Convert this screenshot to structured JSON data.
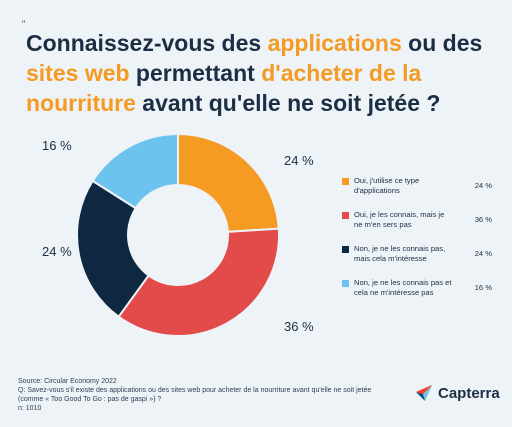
{
  "header": {
    "quote_mark": "\"",
    "title_parts": [
      {
        "text": "Connaissez-vous des ",
        "highlight": false
      },
      {
        "text": "applications",
        "highlight": true
      },
      {
        "text": " ou des ",
        "highlight": false
      },
      {
        "text": "sites web",
        "highlight": true
      },
      {
        "text": " permettant ",
        "highlight": false
      },
      {
        "text": "d'acheter de la nourriture",
        "highlight": true
      },
      {
        "text": " avant qu'elle ne soit jetée ?",
        "highlight": false
      }
    ]
  },
  "colors": {
    "accent": "#f59a23",
    "text": "#1c2e44",
    "background": "#eef3f8"
  },
  "chart_data": {
    "type": "pie",
    "donut": true,
    "categories": [
      "Oui, j'utilise ce type d'applications",
      "Oui, je les connais, mais je ne m'en sers pas",
      "Non, je ne les connais pas, mais cela m'intéresse",
      "Non, je ne les connais pas et cela ne m'intéresse pas"
    ],
    "values": [
      24,
      36,
      24,
      16
    ],
    "labels": [
      "24 %",
      "36 %",
      "24 %",
      "16 %"
    ],
    "colors": [
      "#f59a23",
      "#e34a4a",
      "#0f2842",
      "#6cc4ee"
    ],
    "legend_position": "right"
  },
  "footer": {
    "lines": [
      "Source: Circular Economy 2022",
      "Q: Savez-vous s'il existe des applications ou des sites web  pour acheter de la nourriture avant qu'elle ne soit jetée",
      "(comme « Too Good To Go : pas de gaspi »} ?",
      "n: 1010"
    ]
  },
  "brand": {
    "name": "Capterra",
    "icon": "capterra-arrow-icon"
  }
}
